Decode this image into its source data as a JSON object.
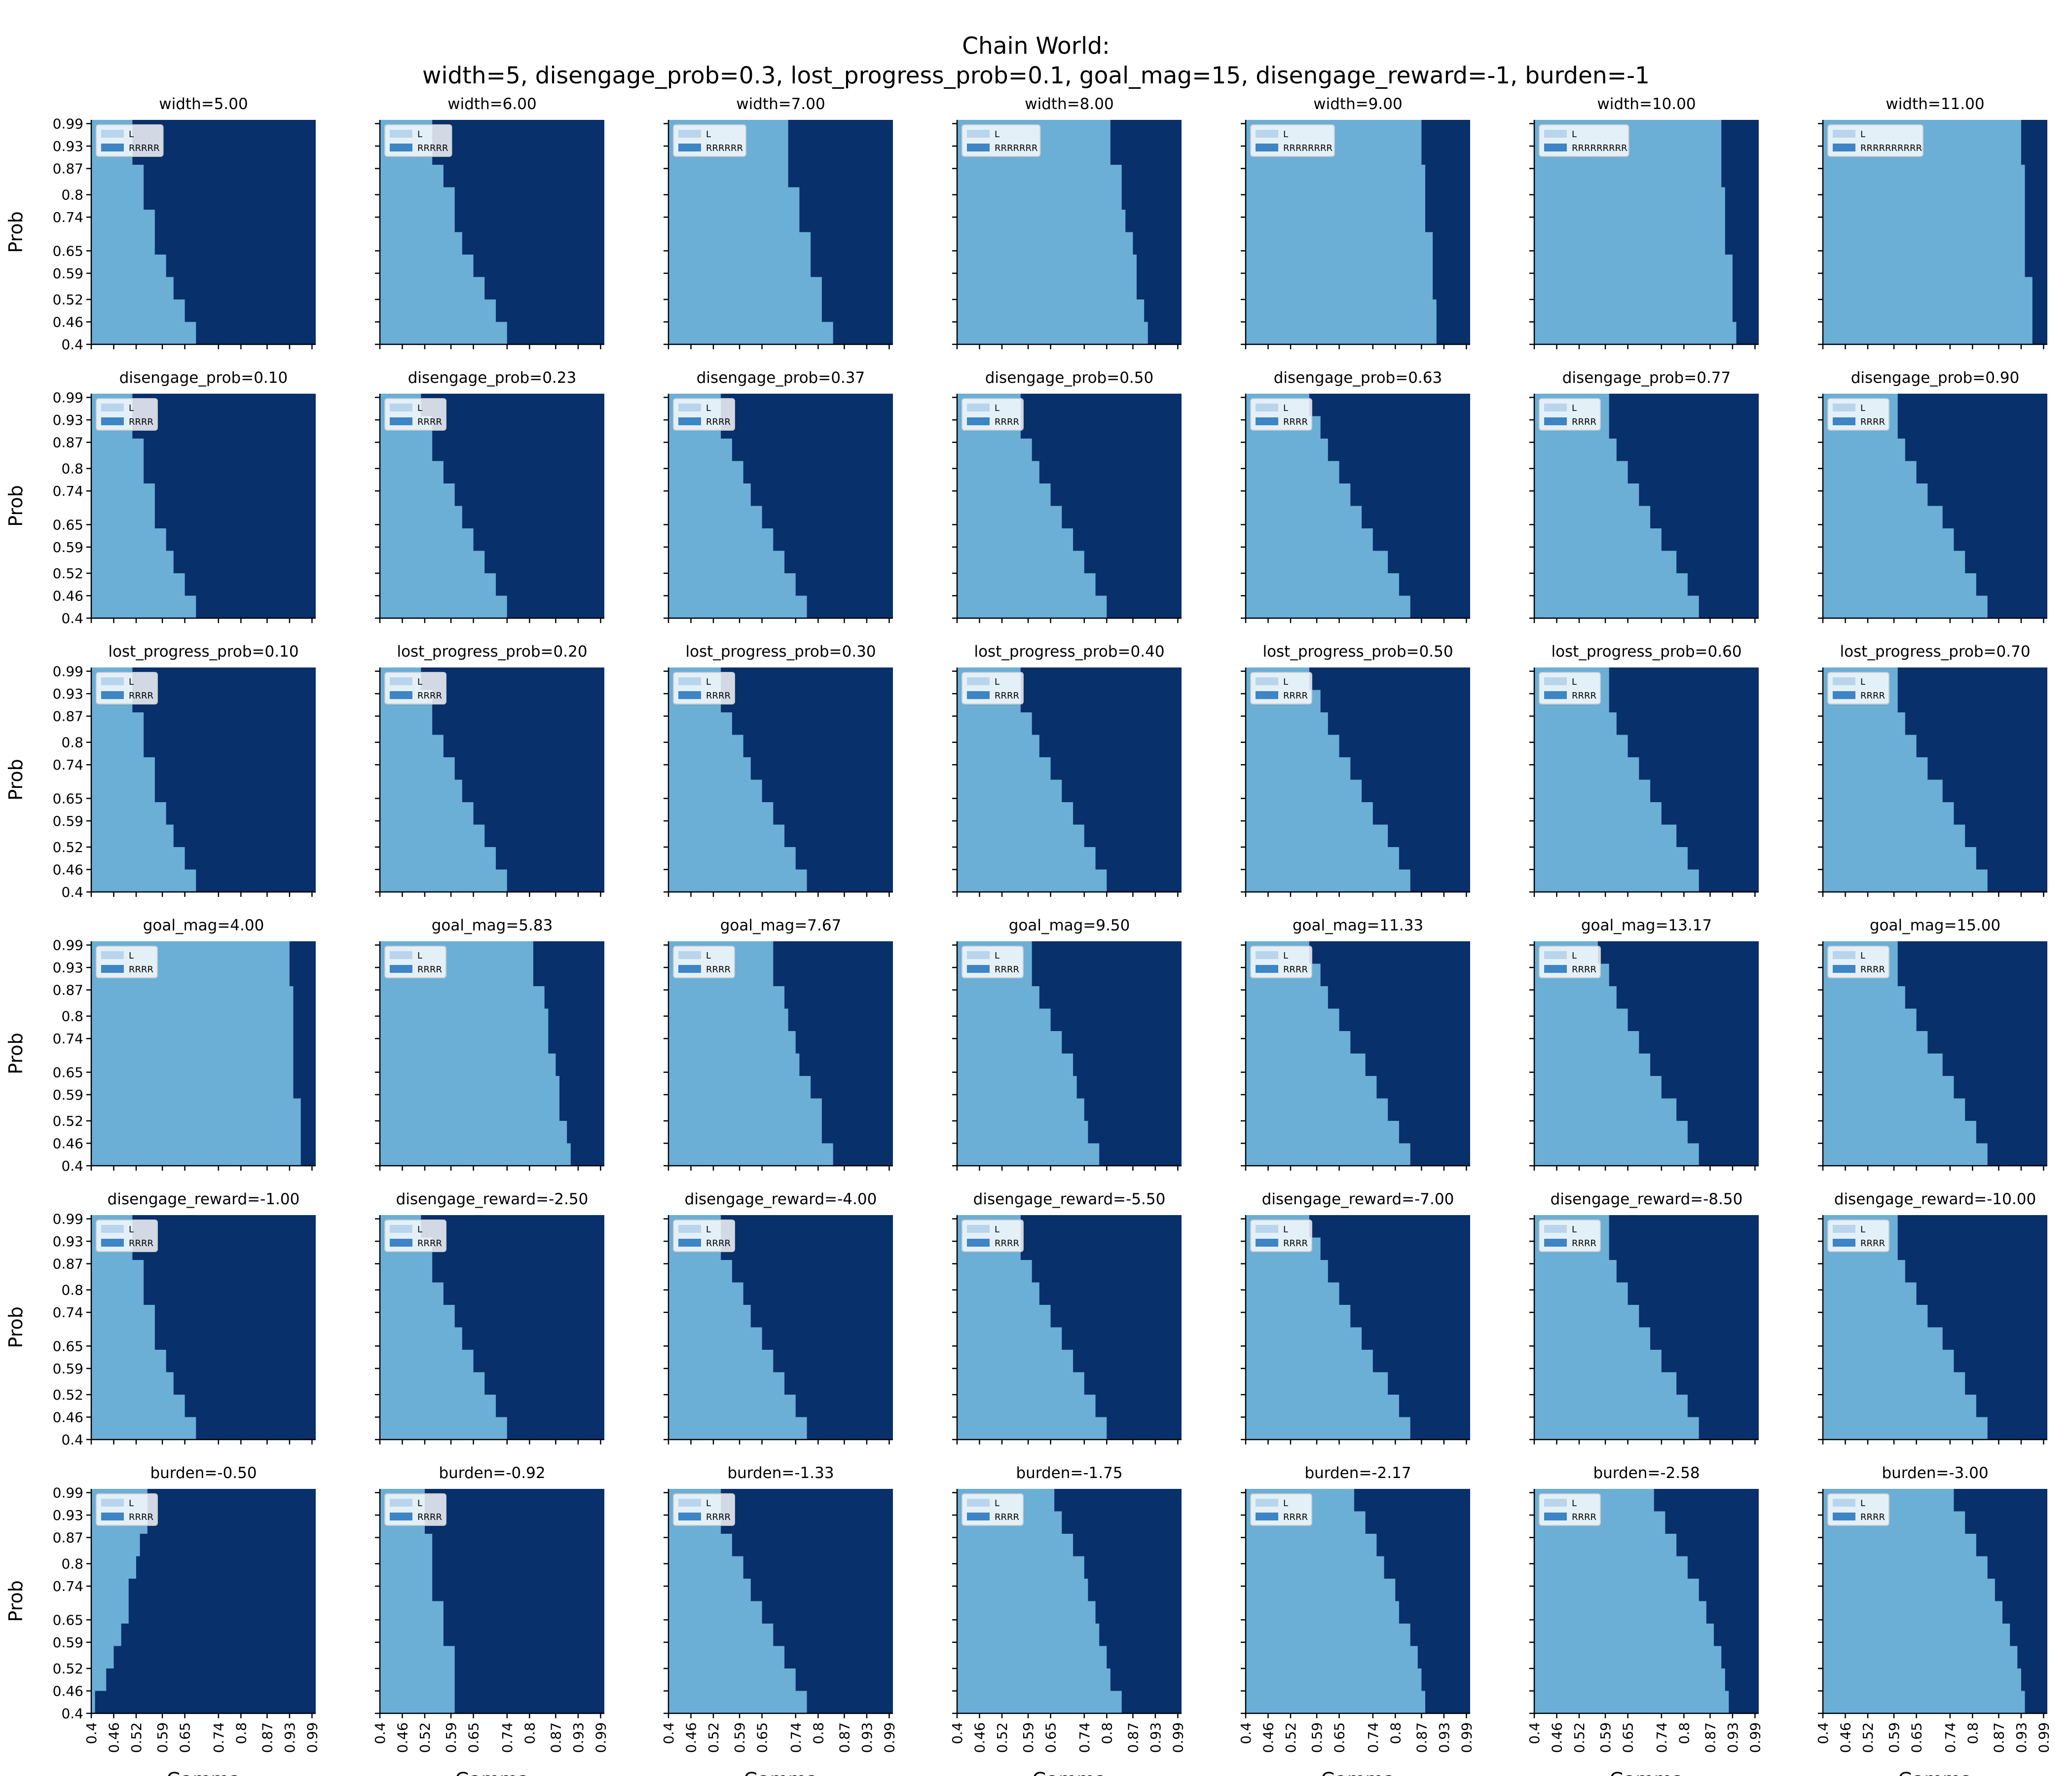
{
  "figure": {
    "title_line1": "Chain World:",
    "title_line2": "width=5, disengage_prob=0.3, lost_progress_prob=0.1, goal_mag=15, disengage_reward=-1, burden=-1",
    "x_label": "Gamma",
    "y_label": "Prob",
    "x_ticks": [
      "0.4",
      "0.46",
      "0.52",
      "0.59",
      "0.65",
      "0.74",
      "0.8",
      "0.87",
      "0.93",
      "0.99"
    ],
    "y_ticks": [
      "0.4",
      "0.46",
      "0.52",
      "0.59",
      "0.65",
      "0.74",
      "0.8",
      "0.87",
      "0.93",
      "0.99"
    ],
    "colors": {
      "L": "#6baed6",
      "R": "#08306b",
      "legend_L": "#b8d5ec",
      "legend_R": "#3d85c4"
    }
  },
  "chart_data": [
    {
      "type": "heatmap",
      "title": "width=5.00",
      "legend": [
        "L",
        "RRRRR"
      ],
      "boundary_gamma": [
        0.68,
        0.65,
        0.62,
        0.6,
        0.57,
        0.57,
        0.54,
        0.54,
        0.51,
        0.51
      ]
    },
    {
      "type": "heatmap",
      "title": "width=6.00",
      "legend": [
        "L",
        "RRRRR"
      ],
      "boundary_gamma": [
        0.74,
        0.71,
        0.68,
        0.65,
        0.62,
        0.6,
        0.6,
        0.57,
        0.54,
        0.54
      ]
    },
    {
      "type": "heatmap",
      "title": "width=7.00",
      "legend": [
        "L",
        "RRRRRR"
      ],
      "boundary_gamma": [
        0.84,
        0.81,
        0.81,
        0.78,
        0.78,
        0.75,
        0.75,
        0.72,
        0.72,
        0.72
      ]
    },
    {
      "type": "heatmap",
      "title": "width=8.00",
      "legend": [
        "L",
        "RRRRRRR"
      ],
      "boundary_gamma": [
        0.91,
        0.9,
        0.88,
        0.88,
        0.87,
        0.85,
        0.84,
        0.84,
        0.81,
        0.81
      ]
    },
    {
      "type": "heatmap",
      "title": "width=9.00",
      "legend": [
        "L",
        "RRRRRRRR"
      ],
      "boundary_gamma": [
        0.91,
        0.91,
        0.9,
        0.9,
        0.9,
        0.88,
        0.88,
        0.88,
        0.87,
        0.87
      ]
    },
    {
      "type": "heatmap",
      "title": "width=10.00",
      "legend": [
        "L",
        "RRRRRRRRR"
      ],
      "boundary_gamma": [
        0.94,
        0.93,
        0.93,
        0.93,
        0.91,
        0.91,
        0.91,
        0.9,
        0.9,
        0.9
      ]
    },
    {
      "type": "heatmap",
      "title": "width=11.00",
      "legend": [
        "L",
        "RRRRRRRRRR"
      ],
      "boundary_gamma": [
        0.96,
        0.96,
        0.96,
        0.94,
        0.94,
        0.94,
        0.94,
        0.94,
        0.93,
        0.93
      ]
    },
    {
      "type": "heatmap",
      "title": "disengage_prob=0.10",
      "legend": [
        "L",
        "RRRR"
      ],
      "boundary_gamma": [
        0.68,
        0.65,
        0.62,
        0.6,
        0.57,
        0.57,
        0.54,
        0.54,
        0.51,
        0.51
      ]
    },
    {
      "type": "heatmap",
      "title": "disengage_prob=0.23",
      "legend": [
        "L",
        "RRRR"
      ],
      "boundary_gamma": [
        0.74,
        0.71,
        0.68,
        0.65,
        0.62,
        0.6,
        0.57,
        0.54,
        0.54,
        0.51
      ]
    },
    {
      "type": "heatmap",
      "title": "disengage_prob=0.37",
      "legend": [
        "L",
        "RRRR"
      ],
      "boundary_gamma": [
        0.77,
        0.74,
        0.71,
        0.68,
        0.65,
        0.62,
        0.6,
        0.57,
        0.54,
        0.54
      ]
    },
    {
      "type": "heatmap",
      "title": "disengage_prob=0.50",
      "legend": [
        "L",
        "RRRR"
      ],
      "boundary_gamma": [
        0.8,
        0.77,
        0.74,
        0.71,
        0.68,
        0.65,
        0.62,
        0.6,
        0.57,
        0.57
      ]
    },
    {
      "type": "heatmap",
      "title": "disengage_prob=0.63",
      "legend": [
        "L",
        "RRRR"
      ],
      "boundary_gamma": [
        0.84,
        0.81,
        0.78,
        0.74,
        0.71,
        0.68,
        0.65,
        0.62,
        0.6,
        0.57
      ]
    },
    {
      "type": "heatmap",
      "title": "disengage_prob=0.77",
      "legend": [
        "L",
        "RRRR"
      ],
      "boundary_gamma": [
        0.84,
        0.81,
        0.78,
        0.74,
        0.71,
        0.68,
        0.65,
        0.62,
        0.6,
        0.6
      ]
    },
    {
      "type": "heatmap",
      "title": "disengage_prob=0.90",
      "legend": [
        "L",
        "RRRR"
      ],
      "boundary_gamma": [
        0.84,
        0.81,
        0.78,
        0.75,
        0.72,
        0.68,
        0.65,
        0.62,
        0.6,
        0.6
      ]
    },
    {
      "type": "heatmap",
      "title": "lost_progress_prob=0.10",
      "legend": [
        "L",
        "RRRR"
      ],
      "boundary_gamma": [
        0.68,
        0.65,
        0.62,
        0.6,
        0.57,
        0.57,
        0.54,
        0.54,
        0.51,
        0.51
      ]
    },
    {
      "type": "heatmap",
      "title": "lost_progress_prob=0.20",
      "legend": [
        "L",
        "RRRR"
      ],
      "boundary_gamma": [
        0.74,
        0.71,
        0.68,
        0.65,
        0.62,
        0.6,
        0.57,
        0.54,
        0.54,
        0.51
      ]
    },
    {
      "type": "heatmap",
      "title": "lost_progress_prob=0.30",
      "legend": [
        "L",
        "RRRR"
      ],
      "boundary_gamma": [
        0.77,
        0.74,
        0.71,
        0.68,
        0.65,
        0.62,
        0.6,
        0.57,
        0.54,
        0.54
      ]
    },
    {
      "type": "heatmap",
      "title": "lost_progress_prob=0.40",
      "legend": [
        "L",
        "RRRR"
      ],
      "boundary_gamma": [
        0.8,
        0.77,
        0.74,
        0.71,
        0.68,
        0.65,
        0.62,
        0.6,
        0.57,
        0.57
      ]
    },
    {
      "type": "heatmap",
      "title": "lost_progress_prob=0.50",
      "legend": [
        "L",
        "RRRR"
      ],
      "boundary_gamma": [
        0.84,
        0.81,
        0.78,
        0.74,
        0.71,
        0.68,
        0.65,
        0.62,
        0.6,
        0.57
      ]
    },
    {
      "type": "heatmap",
      "title": "lost_progress_prob=0.60",
      "legend": [
        "L",
        "RRRR"
      ],
      "boundary_gamma": [
        0.84,
        0.81,
        0.78,
        0.74,
        0.71,
        0.68,
        0.65,
        0.62,
        0.6,
        0.6
      ]
    },
    {
      "type": "heatmap",
      "title": "lost_progress_prob=0.70",
      "legend": [
        "L",
        "RRRR"
      ],
      "boundary_gamma": [
        0.84,
        0.81,
        0.78,
        0.75,
        0.72,
        0.68,
        0.65,
        0.62,
        0.6,
        0.6
      ]
    },
    {
      "type": "heatmap",
      "title": "goal_mag=4.00",
      "legend": [
        "L",
        "RRRR"
      ],
      "boundary_gamma": [
        0.96,
        0.96,
        0.96,
        0.94,
        0.94,
        0.94,
        0.94,
        0.94,
        0.93,
        0.93
      ]
    },
    {
      "type": "heatmap",
      "title": "goal_mag=5.83",
      "legend": [
        "L",
        "RRRR"
      ],
      "boundary_gamma": [
        0.91,
        0.9,
        0.88,
        0.88,
        0.87,
        0.85,
        0.85,
        0.84,
        0.81,
        0.81
      ]
    },
    {
      "type": "heatmap",
      "title": "goal_mag=7.67",
      "legend": [
        "L",
        "RRRR"
      ],
      "boundary_gamma": [
        0.84,
        0.81,
        0.81,
        0.78,
        0.75,
        0.74,
        0.72,
        0.71,
        0.68,
        0.68
      ]
    },
    {
      "type": "heatmap",
      "title": "goal_mag=9.50",
      "legend": [
        "L",
        "RRRR"
      ],
      "boundary_gamma": [
        0.78,
        0.75,
        0.74,
        0.72,
        0.71,
        0.68,
        0.65,
        0.62,
        0.6,
        0.6
      ]
    },
    {
      "type": "heatmap",
      "title": "goal_mag=11.33",
      "legend": [
        "L",
        "RRRR"
      ],
      "boundary_gamma": [
        0.84,
        0.81,
        0.78,
        0.75,
        0.72,
        0.68,
        0.65,
        0.62,
        0.6,
        0.57
      ]
    },
    {
      "type": "heatmap",
      "title": "goal_mag=13.17",
      "legend": [
        "L",
        "RRRR"
      ],
      "boundary_gamma": [
        0.84,
        0.81,
        0.78,
        0.74,
        0.71,
        0.68,
        0.65,
        0.62,
        0.6,
        0.57
      ]
    },
    {
      "type": "heatmap",
      "title": "goal_mag=15.00",
      "legend": [
        "L",
        "RRRR"
      ],
      "boundary_gamma": [
        0.84,
        0.81,
        0.78,
        0.75,
        0.72,
        0.68,
        0.65,
        0.62,
        0.6,
        0.6
      ]
    },
    {
      "type": "heatmap",
      "title": "disengage_reward=-1.00",
      "legend": [
        "L",
        "RRRR"
      ],
      "boundary_gamma": [
        0.68,
        0.65,
        0.62,
        0.6,
        0.57,
        0.57,
        0.54,
        0.54,
        0.51,
        0.51
      ]
    },
    {
      "type": "heatmap",
      "title": "disengage_reward=-2.50",
      "legend": [
        "L",
        "RRRR"
      ],
      "boundary_gamma": [
        0.74,
        0.71,
        0.68,
        0.65,
        0.62,
        0.6,
        0.57,
        0.54,
        0.54,
        0.51
      ]
    },
    {
      "type": "heatmap",
      "title": "disengage_reward=-4.00",
      "legend": [
        "L",
        "RRRR"
      ],
      "boundary_gamma": [
        0.77,
        0.74,
        0.71,
        0.68,
        0.65,
        0.62,
        0.6,
        0.57,
        0.54,
        0.54
      ]
    },
    {
      "type": "heatmap",
      "title": "disengage_reward=-5.50",
      "legend": [
        "L",
        "RRRR"
      ],
      "boundary_gamma": [
        0.8,
        0.77,
        0.74,
        0.71,
        0.68,
        0.65,
        0.62,
        0.6,
        0.57,
        0.57
      ]
    },
    {
      "type": "heatmap",
      "title": "disengage_reward=-7.00",
      "legend": [
        "L",
        "RRRR"
      ],
      "boundary_gamma": [
        0.84,
        0.81,
        0.78,
        0.74,
        0.71,
        0.68,
        0.65,
        0.62,
        0.6,
        0.57
      ]
    },
    {
      "type": "heatmap",
      "title": "disengage_reward=-8.50",
      "legend": [
        "L",
        "RRRR"
      ],
      "boundary_gamma": [
        0.84,
        0.81,
        0.78,
        0.74,
        0.71,
        0.68,
        0.65,
        0.62,
        0.6,
        0.6
      ]
    },
    {
      "type": "heatmap",
      "title": "disengage_reward=-10.00",
      "legend": [
        "L",
        "RRRR"
      ],
      "boundary_gamma": [
        0.84,
        0.81,
        0.78,
        0.75,
        0.72,
        0.68,
        0.65,
        0.62,
        0.6,
        0.6
      ]
    },
    {
      "type": "heatmap",
      "title": "burden=-0.50",
      "legend": [
        "L",
        "RRRR"
      ],
      "boundary_gamma": [
        0.41,
        0.44,
        0.46,
        0.48,
        0.5,
        0.5,
        0.52,
        0.53,
        0.55,
        0.55
      ]
    },
    {
      "type": "heatmap",
      "title": "burden=-0.92",
      "legend": [
        "L",
        "RRRR"
      ],
      "boundary_gamma": [
        0.6,
        0.6,
        0.6,
        0.57,
        0.57,
        0.54,
        0.54,
        0.54,
        0.52,
        0.52
      ]
    },
    {
      "type": "heatmap",
      "title": "burden=-1.33",
      "legend": [
        "L",
        "RRRR"
      ],
      "boundary_gamma": [
        0.77,
        0.74,
        0.71,
        0.68,
        0.65,
        0.62,
        0.6,
        0.57,
        0.54,
        0.54
      ]
    },
    {
      "type": "heatmap",
      "title": "burden=-1.75",
      "legend": [
        "L",
        "RRRR"
      ],
      "boundary_gamma": [
        0.84,
        0.81,
        0.8,
        0.78,
        0.77,
        0.75,
        0.74,
        0.71,
        0.68,
        0.66
      ]
    },
    {
      "type": "heatmap",
      "title": "burden=-2.17",
      "legend": [
        "L",
        "RRRR"
      ],
      "boundary_gamma": [
        0.88,
        0.87,
        0.86,
        0.84,
        0.81,
        0.8,
        0.77,
        0.75,
        0.72,
        0.69
      ]
    },
    {
      "type": "heatmap",
      "title": "burden=-2.58",
      "legend": [
        "L",
        "RRRR"
      ],
      "boundary_gamma": [
        0.92,
        0.91,
        0.9,
        0.88,
        0.86,
        0.84,
        0.81,
        0.78,
        0.75,
        0.72
      ]
    },
    {
      "type": "heatmap",
      "title": "burden=-3.00",
      "legend": [
        "L",
        "RRRR"
      ],
      "boundary_gamma": [
        0.94,
        0.93,
        0.92,
        0.9,
        0.88,
        0.86,
        0.84,
        0.81,
        0.78,
        0.75
      ]
    }
  ]
}
